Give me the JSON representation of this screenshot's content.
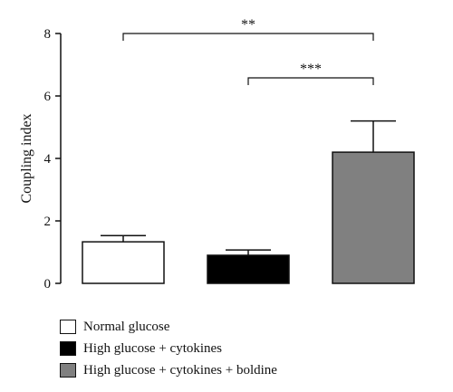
{
  "chart_data": {
    "type": "bar",
    "categories": [
      "Normal glucose",
      "High glucose + cytokines",
      "High glucose + cytokines + boldine"
    ],
    "values": [
      1.33,
      0.9,
      4.2
    ],
    "errors": [
      0.2,
      0.17,
      1.0
    ],
    "colors": [
      "#ffffff",
      "#000000",
      "#808080"
    ],
    "ylabel": "Coupling index",
    "ylim": [
      0,
      8
    ],
    "yticks": [
      "0",
      "2",
      "4",
      "6",
      "8"
    ],
    "grid": false,
    "legend_position": "bottom-left",
    "significance": [
      {
        "from": 0,
        "to": 2,
        "label": "**"
      },
      {
        "from": 1,
        "to": 2,
        "label": "***"
      }
    ]
  }
}
